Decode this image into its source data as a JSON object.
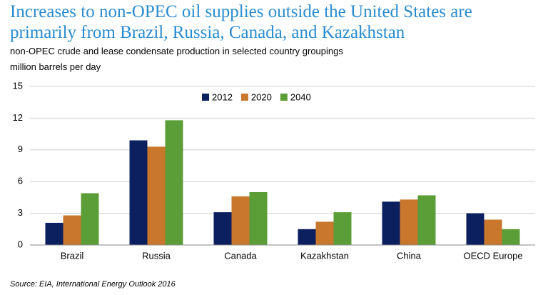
{
  "chart_data": {
    "type": "bar",
    "title": "Increases to non-OPEC oil supplies outside the United States are primarily from Brazil, Russia, Canada, and Kazakhstan",
    "subtitle": "non-OPEC crude and lease condensate production in selected country groupings",
    "y_label": "million barrels per day",
    "source": "Source:  EIA, International Energy Outlook 2016",
    "categories": [
      "Brazil",
      "Russia",
      "Canada",
      "Kazakhstan",
      "China",
      "OECD Europe"
    ],
    "series": [
      {
        "name": "2012",
        "color": "#0c1f5e",
        "values": [
          2.1,
          9.9,
          3.1,
          1.5,
          4.1,
          3.0
        ]
      },
      {
        "name": "2020",
        "color": "#c8772d",
        "values": [
          2.8,
          9.3,
          4.6,
          2.2,
          4.3,
          2.4
        ]
      },
      {
        "name": "2040",
        "color": "#5b9e37",
        "values": [
          4.9,
          11.8,
          5.0,
          3.1,
          4.7,
          1.5
        ]
      }
    ],
    "ylim": [
      0,
      15
    ],
    "yticks": [
      0,
      3,
      6,
      9,
      12,
      15
    ],
    "grid": true,
    "legend": "top"
  }
}
